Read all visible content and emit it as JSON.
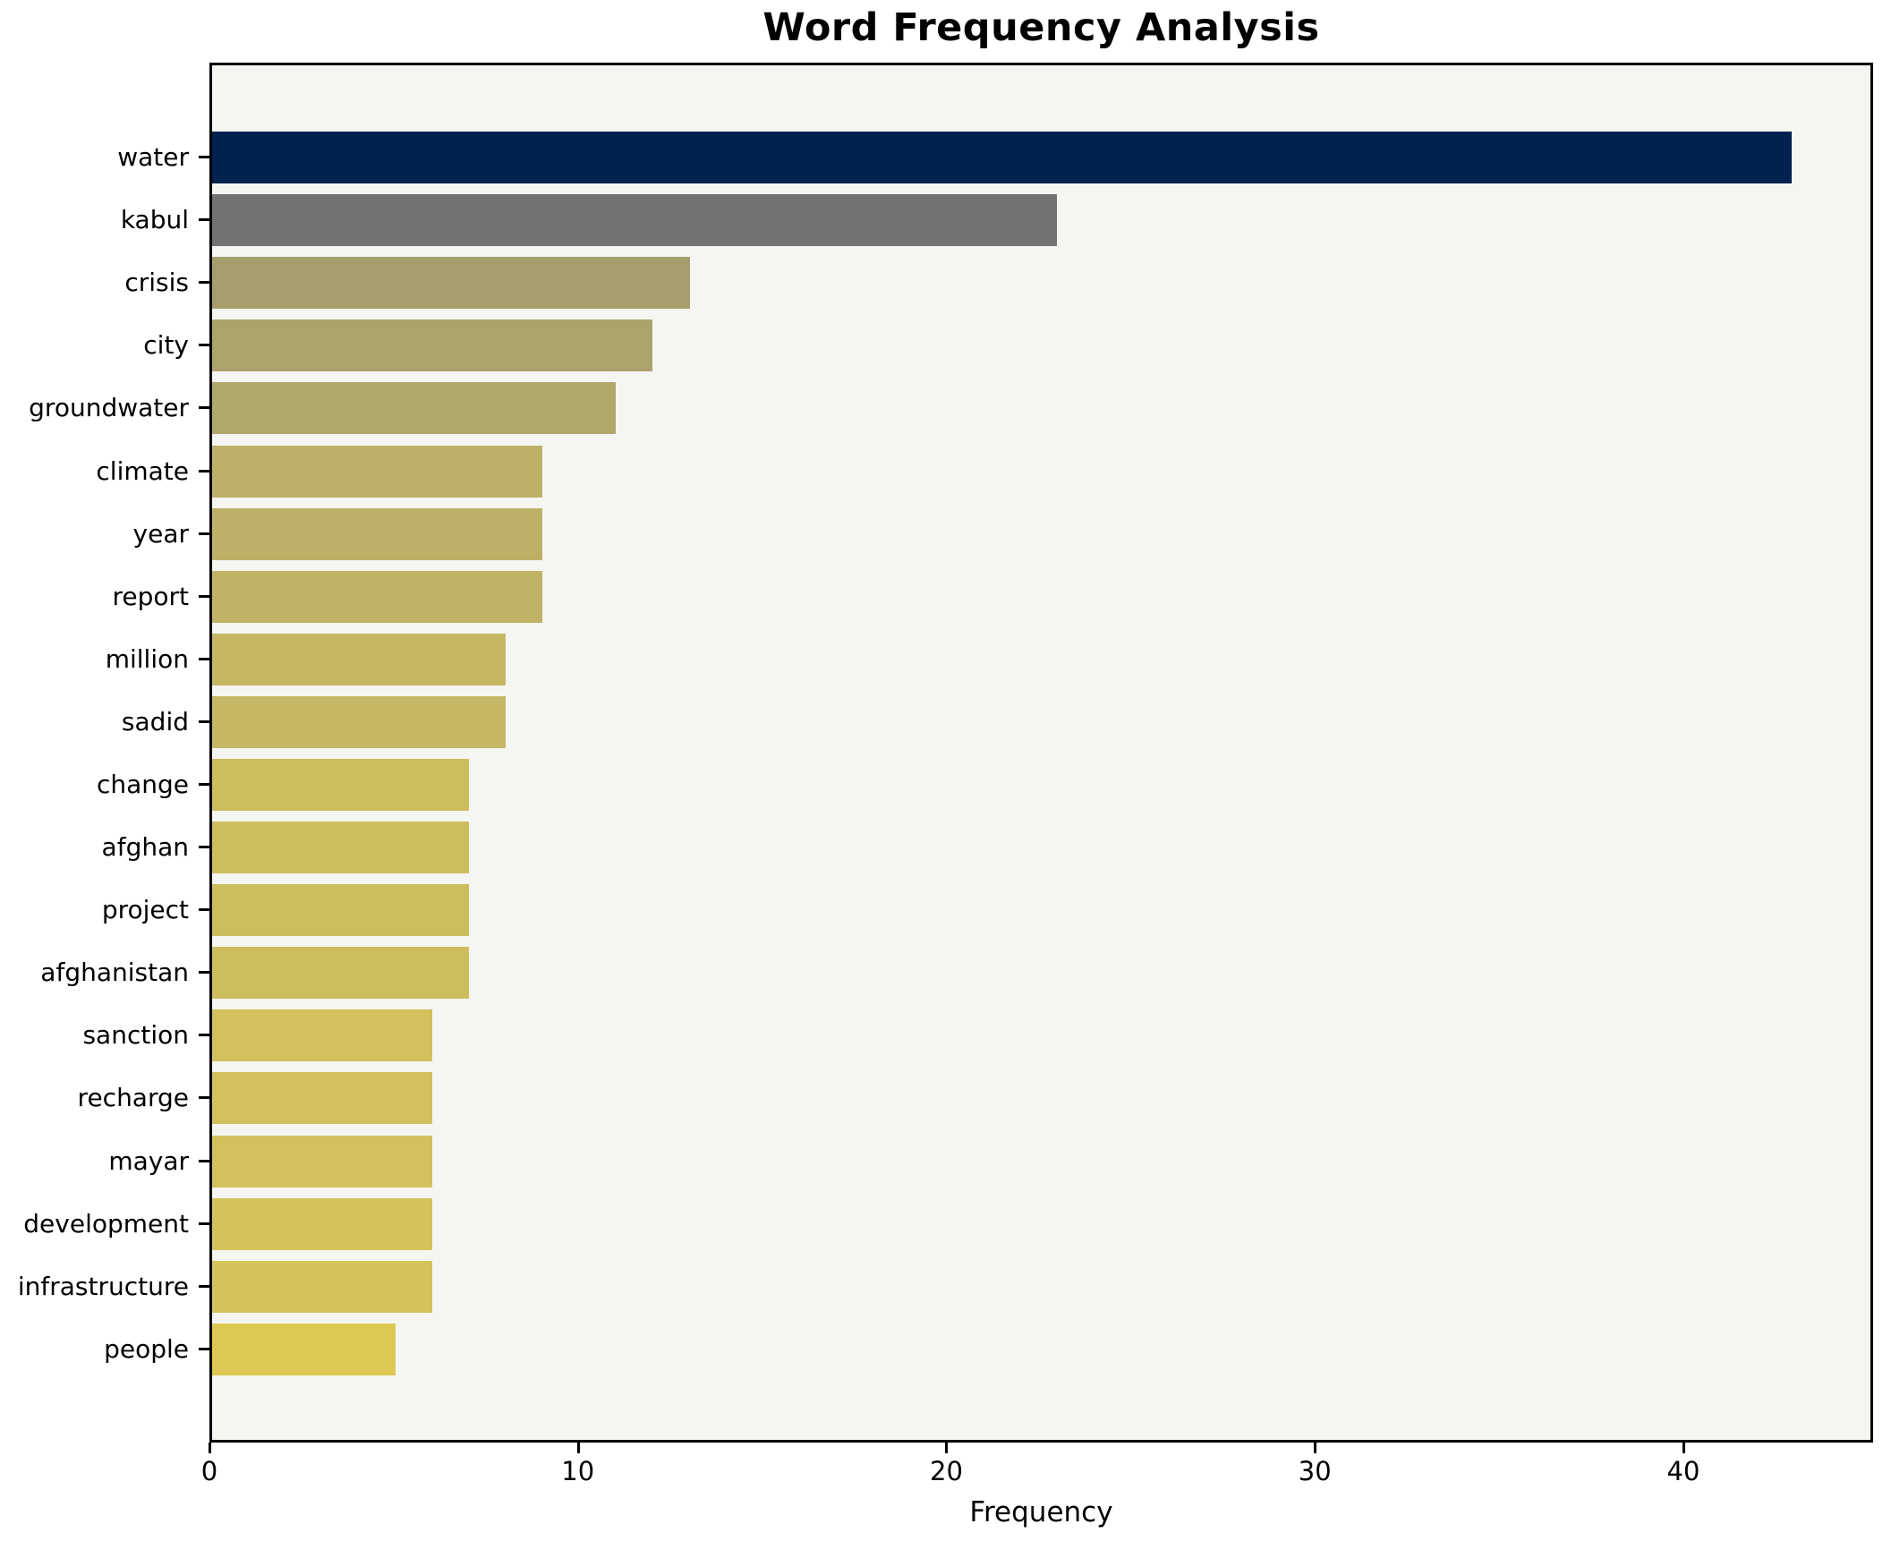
{
  "title": "Word Frequency Analysis",
  "chart_data": {
    "type": "bar",
    "orientation": "horizontal",
    "title": "Word Frequency Analysis",
    "xlabel": "Frequency",
    "ylabel": "",
    "xlim": [
      0,
      45.15
    ],
    "xticks": [
      "0",
      "10",
      "20",
      "30",
      "40"
    ],
    "xtick_values": [
      0,
      10,
      20,
      30,
      40
    ],
    "grid": false,
    "legend": "none",
    "plot_background": "#f5f5f2",
    "figure_background": "#ffffff",
    "categories": [
      "water",
      "kabul",
      "crisis",
      "city",
      "groundwater",
      "climate",
      "year",
      "report",
      "million",
      "sadid",
      "change",
      "afghan",
      "project",
      "afghanistan",
      "sanction",
      "recharge",
      "mayar",
      "development",
      "infrastructure",
      "people"
    ],
    "values": [
      43,
      23,
      13,
      12,
      11,
      9,
      9,
      9,
      8,
      8,
      7,
      7,
      7,
      7,
      6,
      6,
      6,
      6,
      6,
      5
    ],
    "bar_colors": [
      "#00224e",
      "#727272",
      "#a69e6d",
      "#aba26c",
      "#b0a76b",
      "#bdb167",
      "#bdb167",
      "#c0b365",
      "#c5b763",
      "#c5b763",
      "#ccbd5f",
      "#ccbd5f",
      "#ccbd5f",
      "#ccbd5f",
      "#d2c15c",
      "#d2c15c",
      "#d2c15c",
      "#d4c35b",
      "#d4c35b",
      "#dcc853"
    ]
  }
}
